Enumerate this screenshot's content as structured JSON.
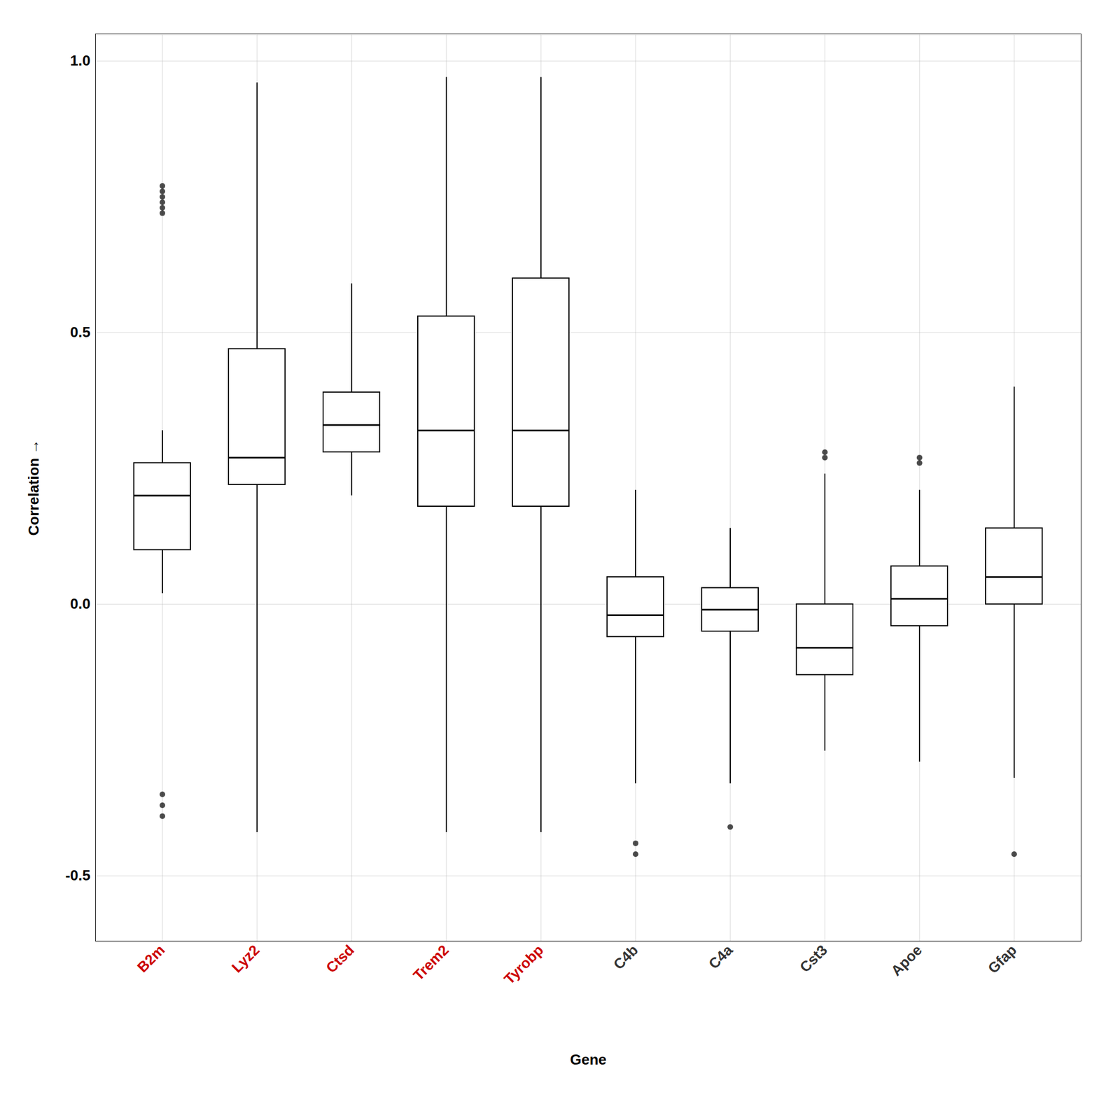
{
  "chart_data": {
    "type": "box",
    "categories": [
      "B2m",
      "Lyz2",
      "Ctsd",
      "Trem2",
      "Tyrobp",
      "C4b",
      "C4a",
      "Cst3",
      "Apoe",
      "Gfap"
    ],
    "colors": [
      "#CC0000",
      "#CC0000",
      "#CC0000",
      "#CC0000",
      "#CC0000",
      "#333333",
      "#333333",
      "#333333",
      "#333333",
      "#333333"
    ],
    "boxes": [
      {
        "q1": 0.1,
        "median": 0.2,
        "q3": 0.26,
        "whislo": 0.02,
        "whishi": 0.32,
        "fliers": [
          0.72,
          0.73,
          0.74,
          0.75,
          0.76,
          0.77,
          -0.35,
          -0.37,
          -0.39
        ]
      },
      {
        "q1": 0.22,
        "median": 0.27,
        "q3": 0.47,
        "whislo": -0.42,
        "whishi": 0.96,
        "fliers": []
      },
      {
        "q1": 0.28,
        "median": 0.33,
        "q3": 0.39,
        "whislo": 0.2,
        "whishi": 0.59,
        "fliers": []
      },
      {
        "q1": 0.18,
        "median": 0.32,
        "q3": 0.53,
        "whislo": -0.42,
        "whishi": 0.97,
        "fliers": []
      },
      {
        "q1": 0.18,
        "median": 0.32,
        "q3": 0.6,
        "whislo": -0.42,
        "whishi": 0.97,
        "fliers": []
      },
      {
        "q1": -0.06,
        "median": -0.02,
        "q3": 0.05,
        "whislo": -0.33,
        "whishi": 0.21,
        "fliers": [
          -0.44,
          -0.46
        ]
      },
      {
        "q1": -0.05,
        "median": -0.01,
        "q3": 0.03,
        "whislo": -0.33,
        "whishi": 0.14,
        "fliers": [
          -0.41
        ]
      },
      {
        "q1": -0.13,
        "median": -0.08,
        "q3": 0.0,
        "whislo": -0.27,
        "whishi": 0.24,
        "fliers": [
          0.27,
          0.28
        ]
      },
      {
        "q1": -0.04,
        "median": 0.01,
        "q3": 0.07,
        "whislo": -0.29,
        "whishi": 0.21,
        "fliers": [
          0.26,
          0.27
        ]
      },
      {
        "q1": 0.0,
        "median": 0.05,
        "q3": 0.14,
        "whislo": -0.32,
        "whishi": 0.4,
        "fliers": [
          -0.46
        ]
      }
    ],
    "xlabel": "Gene",
    "ylabel": "Correlation",
    "ylim": [
      -0.62,
      1.05
    ],
    "yticks": [
      -0.5,
      {
        "value": 0.0,
        "label": "0.0"
      },
      0.5,
      {
        "value": 1.0,
        "label": "1.0"
      }
    ],
    "grid": true
  }
}
